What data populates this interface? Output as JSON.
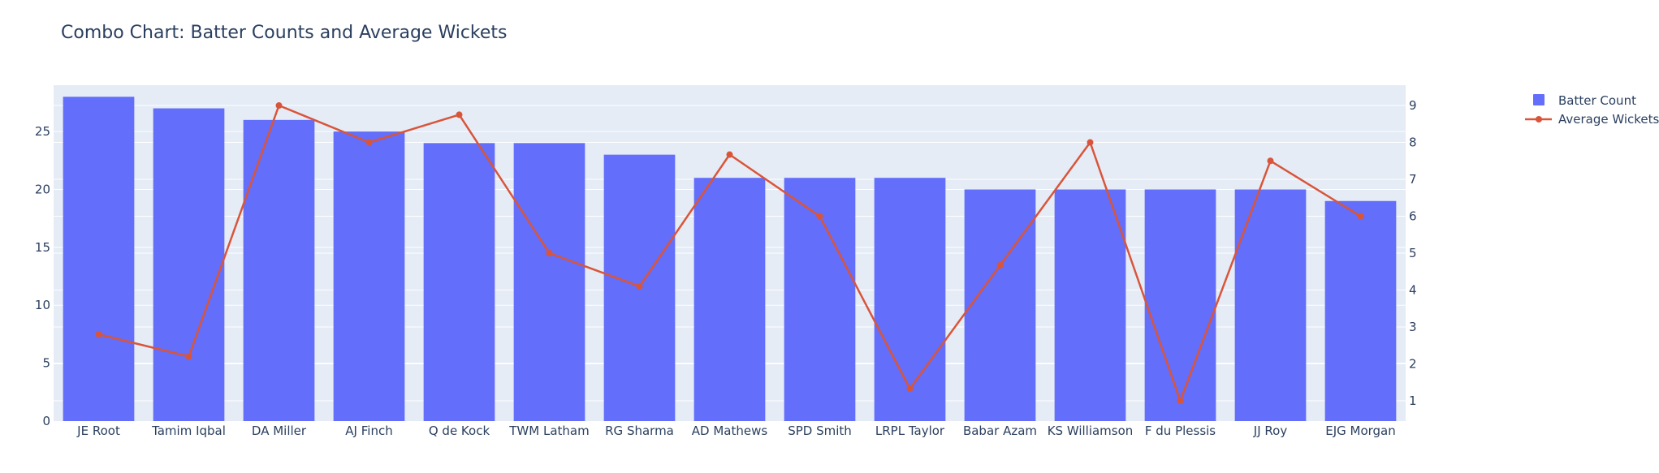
{
  "chart_data": {
    "type": "bar",
    "title": "Combo Chart: Batter Counts and Average Wickets",
    "xlabel": "",
    "ylabel": "",
    "y2label": "",
    "categories": [
      "JE Root",
      "Tamim Iqbal",
      "DA Miller",
      "AJ Finch",
      "Q de Kock",
      "TWM Latham",
      "RG Sharma",
      "AD Mathews",
      "SPD Smith",
      "LRPL Taylor",
      "Babar Azam",
      "KS Williamson",
      "F du Plessis",
      "JJ Roy",
      "EJG Morgan"
    ],
    "ylim": [
      0,
      29
    ],
    "y_ticks": [
      0,
      5,
      10,
      15,
      20,
      25
    ],
    "y2lim": [
      0.45,
      9.55
    ],
    "y2_ticks": [
      1,
      2,
      3,
      4,
      5,
      6,
      7,
      8,
      9
    ],
    "grid": true,
    "legend_position": "top-right",
    "series": [
      {
        "name": "Batter Count",
        "type": "bar",
        "axis": "left",
        "color": "#636efa",
        "values": [
          28,
          27,
          26,
          25,
          24,
          24,
          23,
          21,
          21,
          21,
          20,
          20,
          20,
          20,
          19
        ]
      },
      {
        "name": "Average Wickets",
        "type": "line",
        "axis": "right",
        "color": "#d9553a",
        "values": [
          2.8,
          2.2,
          9.0,
          8.0,
          8.75,
          5.0,
          4.1,
          7.67,
          6.0,
          1.33,
          4.67,
          8.0,
          1.0,
          7.5,
          6.0
        ]
      }
    ]
  }
}
